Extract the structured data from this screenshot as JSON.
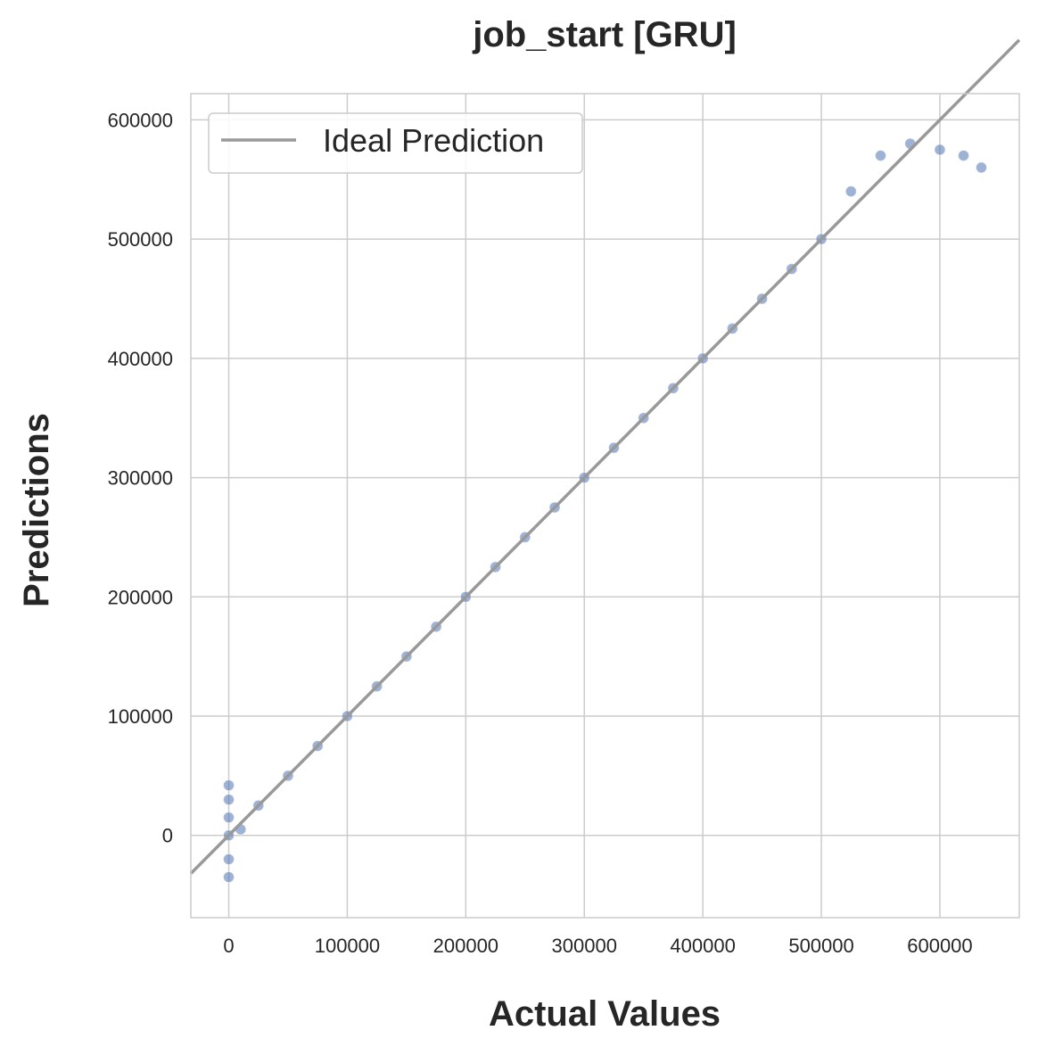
{
  "chart_data": {
    "type": "scatter",
    "title": "job_start [GRU]",
    "xlabel": "Actual Values",
    "ylabel": "Predictions",
    "xlim": [
      -32000,
      667000
    ],
    "ylim": [
      -69000,
      622000
    ],
    "x_ticks": [
      0,
      100000,
      200000,
      300000,
      400000,
      500000,
      600000
    ],
    "x_tick_labels": [
      "0",
      "100000",
      "200000",
      "300000",
      "400000",
      "500000",
      "600000"
    ],
    "y_ticks": [
      0,
      100000,
      200000,
      300000,
      400000,
      500000,
      600000
    ],
    "y_tick_labels": [
      "0",
      "100000",
      "200000",
      "300000",
      "400000",
      "500000",
      "600000"
    ],
    "grid": true,
    "legend": {
      "position": "top-left",
      "entries": [
        {
          "label": "Ideal Prediction",
          "color": "#999999"
        }
      ]
    },
    "series": [
      {
        "kind": "points",
        "color": "#4c72b0",
        "x": [
          0,
          0,
          0,
          0,
          0,
          0,
          10000,
          25000,
          50000,
          75000,
          100000,
          125000,
          150000,
          175000,
          200000,
          225000,
          250000,
          275000,
          300000,
          325000,
          350000,
          375000,
          400000,
          425000,
          450000,
          475000,
          500000,
          525000,
          550000,
          575000,
          600000,
          620000,
          635000
        ],
        "y": [
          -35000,
          -20000,
          0,
          15000,
          30000,
          42000,
          5000,
          25000,
          50000,
          75000,
          100000,
          125000,
          150000,
          175000,
          200000,
          225000,
          250000,
          275000,
          300000,
          325000,
          350000,
          375000,
          400000,
          425000,
          450000,
          475000,
          500000,
          540000,
          570000,
          580000,
          575000,
          570000,
          560000
        ]
      },
      {
        "kind": "line",
        "name": "Ideal Prediction",
        "color": "#999999",
        "x": [
          -32000,
          667000
        ],
        "y": [
          -32000,
          667000
        ]
      }
    ]
  }
}
